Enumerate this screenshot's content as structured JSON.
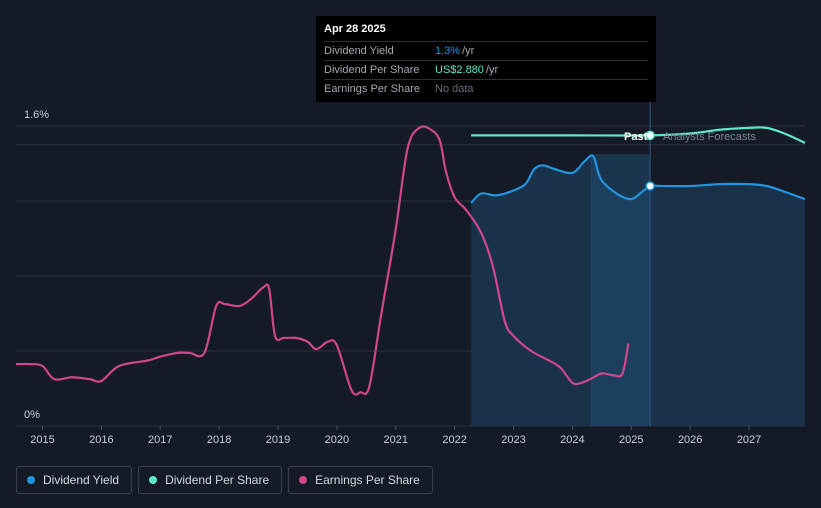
{
  "tooltip": {
    "date": "Apr 28 2025",
    "rows": [
      {
        "label": "Dividend Yield",
        "value": "1.3%",
        "unit": "/yr"
      },
      {
        "label": "Dividend Per Share",
        "value": "US$2.880",
        "unit": "/yr"
      },
      {
        "label": "Earnings Per Share",
        "value": "No data",
        "unit": ""
      }
    ]
  },
  "labels": {
    "past": "Past",
    "forecast": "Analysts Forecasts"
  },
  "legend": [
    {
      "label": "Dividend Yield",
      "color": "#2394df"
    },
    {
      "label": "Dividend Per Share",
      "color": "#5ee8c8"
    },
    {
      "label": "Earnings Per Share",
      "color": "#d0468c"
    }
  ],
  "chart_data": {
    "type": "line",
    "title": "",
    "xlabel": "",
    "ylabel": "",
    "x_ticks": [
      "2015",
      "2016",
      "2017",
      "2018",
      "2019",
      "2020",
      "2021",
      "2022",
      "2023",
      "2024",
      "2025",
      "2026",
      "2027"
    ],
    "y_tick_labels": [
      "1.6%",
      "0%"
    ],
    "xlim": [
      2014.55,
      2027.95
    ],
    "ylim": [
      0,
      1.6
    ],
    "grid": true,
    "legend_position": "bottom-left",
    "past_boundary_x": 2025.32,
    "highlight_start_x": 2024.32,
    "series": [
      {
        "name": "Dividend Yield",
        "color": "#2394df",
        "x": [
          2022.28,
          2022.45,
          2022.7,
          2022.95,
          2023.2,
          2023.35,
          2023.5,
          2023.7,
          2024.0,
          2024.2,
          2024.35,
          2024.45,
          2024.55,
          2024.8,
          2025.0,
          2025.15,
          2025.32,
          2025.5,
          2026.0,
          2026.5,
          2027.0,
          2027.3,
          2027.6,
          2027.95
        ],
        "y": [
          1.19,
          1.24,
          1.23,
          1.25,
          1.29,
          1.37,
          1.39,
          1.37,
          1.35,
          1.41,
          1.44,
          1.34,
          1.29,
          1.23,
          1.21,
          1.24,
          1.28,
          1.28,
          1.28,
          1.29,
          1.29,
          1.28,
          1.25,
          1.21
        ]
      },
      {
        "name": "Dividend Per Share",
        "color": "#5ee8c8",
        "x": [
          2022.28,
          2023.0,
          2024.0,
          2025.32,
          2026.0,
          2026.5,
          2027.0,
          2027.3,
          2027.6,
          2027.95
        ],
        "y": [
          1.55,
          1.55,
          1.55,
          1.55,
          1.56,
          1.58,
          1.59,
          1.59,
          1.56,
          1.51
        ]
      },
      {
        "name": "Earnings Per Share",
        "color": "#d0468c",
        "x": [
          2014.55,
          2014.8,
          2015.0,
          2015.2,
          2015.5,
          2015.8,
          2016.0,
          2016.3,
          2016.8,
          2017.0,
          2017.3,
          2017.5,
          2017.75,
          2017.95,
          2018.1,
          2018.35,
          2018.55,
          2018.75,
          2018.85,
          2018.95,
          2019.1,
          2019.3,
          2019.5,
          2019.65,
          2019.85,
          2020.0,
          2020.25,
          2020.4,
          2020.55,
          2020.75,
          2021.0,
          2021.2,
          2021.4,
          2021.6,
          2021.75,
          2021.85,
          2022.0,
          2022.2,
          2022.45,
          2022.65,
          2022.85,
          2023.0,
          2023.3,
          2023.6,
          2023.8,
          2024.0,
          2024.15,
          2024.3,
          2024.5,
          2024.7,
          2024.85,
          2024.95
        ],
        "y": [
          0.33,
          0.33,
          0.32,
          0.25,
          0.26,
          0.25,
          0.24,
          0.32,
          0.35,
          0.37,
          0.39,
          0.39,
          0.39,
          0.64,
          0.65,
          0.64,
          0.68,
          0.74,
          0.73,
          0.48,
          0.47,
          0.47,
          0.45,
          0.41,
          0.45,
          0.43,
          0.19,
          0.18,
          0.21,
          0.59,
          1.05,
          1.48,
          1.59,
          1.58,
          1.52,
          1.36,
          1.22,
          1.15,
          1.03,
          0.85,
          0.56,
          0.48,
          0.4,
          0.35,
          0.31,
          0.23,
          0.23,
          0.25,
          0.28,
          0.27,
          0.28,
          0.44
        ]
      }
    ]
  }
}
